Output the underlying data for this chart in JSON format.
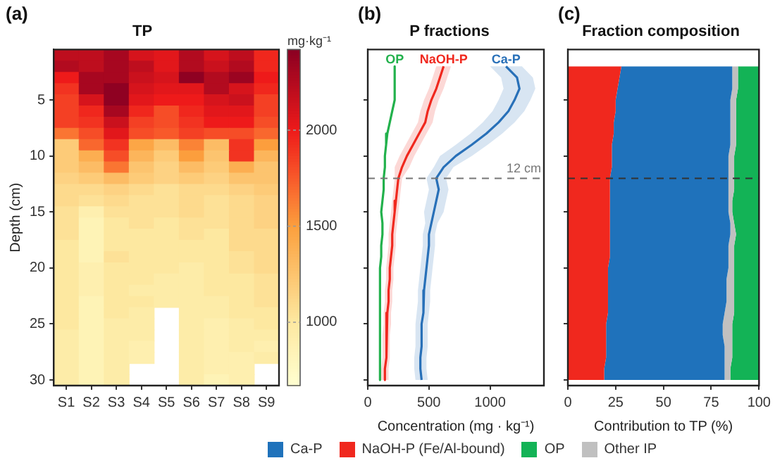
{
  "chart_data": [
    {
      "type": "heatmap",
      "title": "TP",
      "annotations": [
        "(a)"
      ],
      "ylabel": "Depth (cm)",
      "clabel": "mg·kg⁻¹",
      "categories": [
        "S1",
        "S2",
        "S3",
        "S4",
        "S5",
        "S6",
        "S7",
        "S8",
        "S9"
      ],
      "ylim": [
        30.5,
        0.5
      ],
      "yticks": [
        5,
        10,
        15,
        20,
        25,
        30
      ],
      "clim": [
        670,
        2420
      ],
      "cticks": [
        1000,
        1500,
        2000
      ],
      "cells": [
        [
          2200,
          2200,
          2300,
          2100,
          2050,
          2250,
          2100,
          2200,
          1950
        ],
        [
          2250,
          2200,
          2300,
          2200,
          2050,
          2250,
          2150,
          2250,
          1950
        ],
        [
          2000,
          2300,
          2300,
          2150,
          2100,
          2400,
          2250,
          2350,
          2000
        ],
        [
          1900,
          2300,
          2400,
          2100,
          2050,
          2050,
          2250,
          2100,
          1950
        ],
        [
          1850,
          2100,
          2400,
          2050,
          2000,
          2000,
          2100,
          2150,
          1850
        ],
        [
          1850,
          1950,
          2300,
          1950,
          1800,
          1950,
          2050,
          2050,
          1850
        ],
        [
          1850,
          1900,
          2150,
          1850,
          1800,
          1900,
          2000,
          2000,
          1800
        ],
        [
          1650,
          1800,
          2050,
          1800,
          1750,
          1850,
          1800,
          1800,
          1700
        ],
        [
          1200,
          1700,
          1900,
          1450,
          1300,
          1600,
          1300,
          1900,
          1500
        ],
        [
          1200,
          1400,
          1800,
          1350,
          1200,
          1500,
          1250,
          1900,
          1350
        ],
        [
          1200,
          1300,
          1650,
          1250,
          1150,
          1300,
          1200,
          1400,
          1250
        ],
        [
          1150,
          1200,
          1300,
          1200,
          1150,
          1200,
          1150,
          1250,
          1250
        ],
        [
          1100,
          1100,
          1150,
          1100,
          1050,
          1100,
          1100,
          1150,
          1200
        ],
        [
          1100,
          1050,
          1100,
          1050,
          1050,
          1100,
          1050,
          1100,
          1150
        ],
        [
          1050,
          900,
          1050,
          1050,
          1050,
          1100,
          1050,
          1100,
          1150
        ],
        [
          1050,
          850,
          1000,
          1050,
          1000,
          1050,
          1050,
          1100,
          1150
        ],
        [
          1050,
          850,
          1000,
          1000,
          1000,
          1050,
          1000,
          1100,
          1100
        ],
        [
          1000,
          850,
          1000,
          1000,
          1000,
          1000,
          1000,
          1100,
          1100
        ],
        [
          1000,
          850,
          1050,
          1000,
          1000,
          1000,
          1000,
          1050,
          1100
        ],
        [
          1000,
          900,
          1000,
          1000,
          1000,
          950,
          1000,
          1050,
          1100
        ],
        [
          1000,
          900,
          1000,
          1000,
          950,
          950,
          1000,
          1000,
          1050
        ],
        [
          1000,
          900,
          1000,
          950,
          950,
          950,
          1000,
          1000,
          1050
        ],
        [
          1000,
          850,
          1000,
          1000,
          950,
          950,
          950,
          1000,
          1050
        ],
        [
          1000,
          850,
          1000,
          950,
          null,
          950,
          950,
          1000,
          1000
        ],
        [
          1000,
          850,
          950,
          950,
          null,
          950,
          900,
          950,
          1000
        ],
        [
          950,
          850,
          950,
          950,
          null,
          950,
          900,
          950,
          950
        ],
        [
          950,
          850,
          950,
          900,
          null,
          950,
          900,
          950,
          900
        ],
        [
          950,
          850,
          950,
          900,
          null,
          950,
          900,
          900,
          950
        ],
        [
          950,
          850,
          950,
          null,
          null,
          950,
          900,
          900,
          null
        ],
        [
          950,
          850,
          950,
          null,
          null,
          950,
          850,
          900,
          null
        ]
      ]
    },
    {
      "type": "line",
      "title": "P fractions",
      "annotations": [
        "(b)"
      ],
      "xlabel": "Concentration (mg · kg⁻¹)",
      "orientation": "horizontal",
      "x": [
        2,
        3,
        4,
        5,
        6,
        7,
        8,
        9,
        10,
        11,
        12,
        13,
        14,
        15,
        16,
        17,
        18,
        19,
        20,
        21,
        22,
        23,
        24,
        25,
        26,
        27,
        28,
        29,
        30
      ],
      "xlim": [
        0,
        1440
      ],
      "xticks": [
        0,
        500,
        1000
      ],
      "ylim": [
        30.5,
        0.5
      ],
      "yticks": [
        {
          "value": 5,
          "label": null
        },
        {
          "value": 10,
          "label": null
        },
        {
          "value": 15,
          "label": null
        },
        {
          "value": 20,
          "label": null
        },
        {
          "value": 25,
          "label": null
        },
        {
          "value": 30,
          "label": null
        }
      ],
      "tick_labels": "x",
      "ref_lines": [
        {
          "axis": "y",
          "value": 12,
          "label": "12 cm",
          "line_style": "dashed",
          "color": "#777777"
        }
      ],
      "series": [
        {
          "name": "OP",
          "color": "#22b14c",
          "values": [
            220,
            220,
            220,
            220,
            200,
            180,
            160,
            150,
            140,
            140,
            130,
            130,
            120,
            110,
            120,
            120,
            110,
            110,
            100,
            100,
            100,
            100,
            100,
            100,
            100,
            100,
            100,
            100,
            100
          ]
        },
        {
          "name": "NaOH-P",
          "color": "#f0281e",
          "values": [
            620,
            590,
            560,
            520,
            490,
            470,
            420,
            370,
            320,
            280,
            250,
            240,
            230,
            220,
            210,
            200,
            200,
            190,
            180,
            180,
            170,
            170,
            160,
            160,
            150,
            150,
            150,
            140,
            140
          ],
          "lower": [
            560,
            530,
            500,
            460,
            430,
            410,
            360,
            310,
            260,
            220,
            220,
            210,
            200,
            190,
            180,
            170,
            170,
            160,
            150,
            150,
            140,
            140,
            130,
            130,
            120,
            120,
            120,
            110,
            110
          ],
          "upper": [
            680,
            650,
            620,
            580,
            550,
            530,
            480,
            430,
            380,
            340,
            280,
            270,
            260,
            250,
            240,
            230,
            230,
            220,
            210,
            210,
            200,
            200,
            190,
            190,
            180,
            180,
            180,
            170,
            170
          ]
        },
        {
          "name": "Ca-P",
          "color": "#2870b8",
          "values": [
            1130,
            1220,
            1240,
            1200,
            1150,
            1070,
            970,
            850,
            720,
            620,
            560,
            580,
            560,
            540,
            520,
            500,
            500,
            490,
            480,
            470,
            460,
            460,
            450,
            440,
            440,
            440,
            430,
            430,
            440
          ],
          "lower": [
            1000,
            1090,
            1110,
            1070,
            1020,
            940,
            840,
            720,
            590,
            540,
            480,
            500,
            480,
            460,
            470,
            450,
            450,
            440,
            430,
            420,
            410,
            410,
            400,
            390,
            390,
            390,
            380,
            380,
            390
          ],
          "upper": [
            1260,
            1350,
            1370,
            1330,
            1280,
            1200,
            1100,
            980,
            850,
            700,
            640,
            660,
            640,
            620,
            570,
            550,
            550,
            540,
            530,
            520,
            510,
            510,
            500,
            490,
            490,
            490,
            480,
            480,
            490
          ]
        }
      ]
    },
    {
      "type": "area",
      "title": "Fraction composition",
      "annotations": [
        "(c)"
      ],
      "xlabel": "Contribution to TP (%)",
      "orientation": "horizontal",
      "stacked": true,
      "x": [
        2,
        3,
        4,
        5,
        6,
        7,
        8,
        9,
        10,
        11,
        12,
        13,
        14,
        15,
        16,
        17,
        18,
        19,
        20,
        21,
        22,
        23,
        24,
        25,
        26,
        27,
        28,
        29,
        30
      ],
      "xlim": [
        0,
        100
      ],
      "xticks": [
        0,
        25,
        50,
        75,
        100
      ],
      "ylim": [
        30.5,
        0.5
      ],
      "yticks": [
        {
          "value": 5,
          "label": null
        },
        {
          "value": 10,
          "label": null
        },
        {
          "value": 15,
          "label": null
        },
        {
          "value": 20,
          "label": null
        },
        {
          "value": 25,
          "label": null
        },
        {
          "value": 30,
          "label": null
        }
      ],
      "tick_labels": "x",
      "legend": "bottom",
      "ref_lines": [
        {
          "axis": "y",
          "value": 12,
          "line_style": "dashed",
          "color": "#333333"
        }
      ],
      "series": [
        {
          "name": "NaOH-P (Fe/Al-bound)",
          "color": "#f0281e",
          "values": [
            28,
            27,
            26,
            25,
            25,
            24,
            24,
            23,
            23,
            23,
            22,
            22,
            22,
            22,
            22,
            22,
            22,
            22,
            21,
            21,
            21,
            21,
            21,
            20,
            20,
            20,
            20,
            19,
            19
          ]
        },
        {
          "name": "Ca-P",
          "color": "#1f72bb",
          "values": [
            58,
            59,
            60,
            60,
            60,
            61,
            61,
            62,
            61,
            61,
            62,
            62,
            62,
            62,
            63,
            63,
            62,
            62,
            63,
            62,
            62,
            62,
            61,
            61,
            61,
            62,
            62,
            63,
            63
          ]
        },
        {
          "name": "Other IP",
          "color": "#c0c0c0",
          "values": [
            3,
            3,
            3,
            3,
            3,
            3,
            3,
            3,
            3,
            3,
            3,
            3,
            2,
            2,
            2,
            3,
            3,
            3,
            3,
            4,
            4,
            4,
            5,
            5,
            5,
            4,
            4,
            3,
            3
          ]
        },
        {
          "name": "OP",
          "color": "#13b356",
          "values": [
            11,
            11,
            11,
            12,
            12,
            12,
            12,
            12,
            13,
            13,
            13,
            13,
            14,
            14,
            13,
            12,
            13,
            13,
            13,
            13,
            13,
            13,
            13,
            14,
            14,
            14,
            14,
            15,
            15
          ]
        }
      ]
    }
  ]
}
